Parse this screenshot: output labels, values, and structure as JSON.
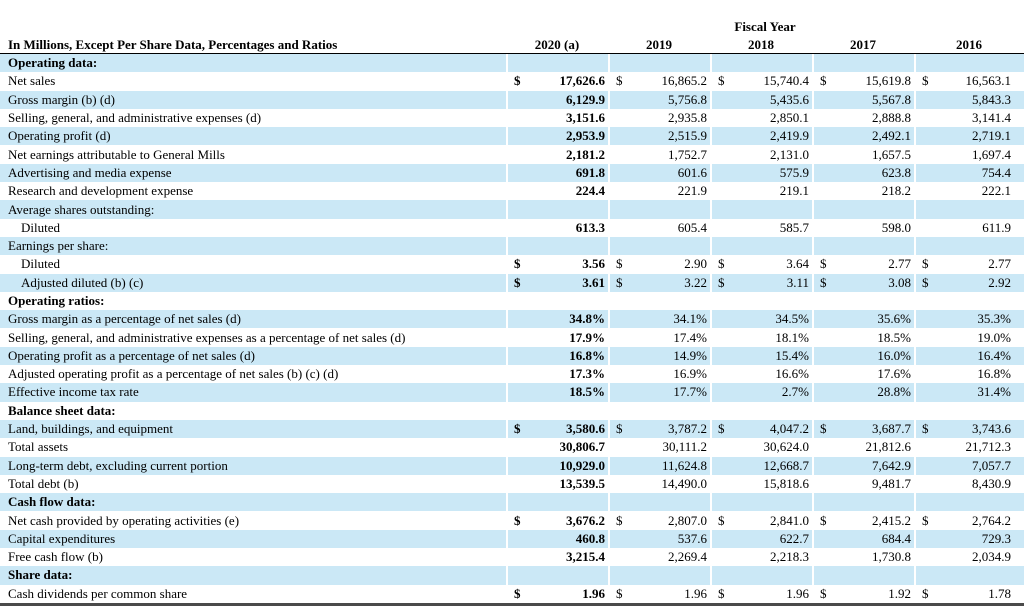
{
  "table": {
    "fiscal_year_label": "Fiscal Year",
    "row_label_header": "In Millions, Except Per Share Data, Percentages and Ratios",
    "year_columns": [
      "2020 (a)",
      "2019",
      "2018",
      "2017",
      "2016"
    ],
    "currency_symbol": "$",
    "colors": {
      "band": "#cbe8f6",
      "header_rule": "#000000",
      "bottom_rule": "#4a4a4a"
    },
    "rows": [
      {
        "label": "Operating data:",
        "style": "section-bold",
        "indent": false,
        "dollar": false,
        "values": []
      },
      {
        "label": "Net sales",
        "style": "data",
        "indent": false,
        "dollar": true,
        "values": [
          "17,626.6",
          "16,865.2",
          "15,740.4",
          "15,619.8",
          "16,563.1"
        ]
      },
      {
        "label": "Gross margin (b) (d)",
        "style": "data",
        "indent": false,
        "dollar": false,
        "values": [
          "6,129.9",
          "5,756.8",
          "5,435.6",
          "5,567.8",
          "5,843.3"
        ]
      },
      {
        "label": "Selling, general, and administrative expenses (d)",
        "style": "data",
        "indent": false,
        "dollar": false,
        "values": [
          "3,151.6",
          "2,935.8",
          "2,850.1",
          "2,888.8",
          "3,141.4"
        ]
      },
      {
        "label": "Operating profit (d)",
        "style": "data",
        "indent": false,
        "dollar": false,
        "values": [
          "2,953.9",
          "2,515.9",
          "2,419.9",
          "2,492.1",
          "2,719.1"
        ]
      },
      {
        "label": "Net earnings attributable to General Mills",
        "style": "data",
        "indent": false,
        "dollar": false,
        "values": [
          "2,181.2",
          "1,752.7",
          "2,131.0",
          "1,657.5",
          "1,697.4"
        ]
      },
      {
        "label": "Advertising and media expense",
        "style": "data",
        "indent": false,
        "dollar": false,
        "values": [
          "691.8",
          "601.6",
          "575.9",
          "623.8",
          "754.4"
        ]
      },
      {
        "label": "Research and development expense",
        "style": "data",
        "indent": false,
        "dollar": false,
        "values": [
          "224.4",
          "221.9",
          "219.1",
          "218.2",
          "222.1"
        ]
      },
      {
        "label": "Average shares outstanding:",
        "style": "section-plain",
        "indent": false,
        "dollar": false,
        "values": []
      },
      {
        "label": "Diluted",
        "style": "data",
        "indent": true,
        "dollar": false,
        "values": [
          "613.3",
          "605.4",
          "585.7",
          "598.0",
          "611.9"
        ]
      },
      {
        "label": "Earnings per share:",
        "style": "section-plain",
        "indent": false,
        "dollar": false,
        "values": []
      },
      {
        "label": "Diluted",
        "style": "data",
        "indent": true,
        "dollar": true,
        "values": [
          "3.56",
          "2.90",
          "3.64",
          "2.77",
          "2.77"
        ]
      },
      {
        "label": "Adjusted diluted (b) (c)",
        "style": "data",
        "indent": true,
        "dollar": true,
        "values": [
          "3.61",
          "3.22",
          "3.11",
          "3.08",
          "2.92"
        ]
      },
      {
        "label": "Operating ratios:",
        "style": "section-bold",
        "indent": false,
        "dollar": false,
        "values": []
      },
      {
        "label": "Gross margin as a percentage of net sales (d)",
        "style": "data",
        "indent": false,
        "dollar": false,
        "values": [
          "34.8%",
          "34.1%",
          "34.5%",
          "35.6%",
          "35.3%"
        ]
      },
      {
        "label": "Selling, general, and administrative expenses as a percentage of net sales (d)",
        "style": "data",
        "indent": false,
        "dollar": false,
        "values": [
          "17.9%",
          "17.4%",
          "18.1%",
          "18.5%",
          "19.0%"
        ]
      },
      {
        "label": "Operating profit as a percentage of net sales (d)",
        "style": "data",
        "indent": false,
        "dollar": false,
        "values": [
          "16.8%",
          "14.9%",
          "15.4%",
          "16.0%",
          "16.4%"
        ]
      },
      {
        "label": "Adjusted operating profit as a percentage of net sales (b) (c) (d)",
        "style": "data",
        "indent": false,
        "dollar": false,
        "values": [
          "17.3%",
          "16.9%",
          "16.6%",
          "17.6%",
          "16.8%"
        ]
      },
      {
        "label": "Effective income tax rate",
        "style": "data",
        "indent": false,
        "dollar": false,
        "values": [
          "18.5%",
          "17.7%",
          "2.7%",
          "28.8%",
          "31.4%"
        ]
      },
      {
        "label": "Balance sheet data:",
        "style": "section-bold",
        "indent": false,
        "dollar": false,
        "values": []
      },
      {
        "label": "Land, buildings, and equipment",
        "style": "data",
        "indent": false,
        "dollar": true,
        "values": [
          "3,580.6",
          "3,787.2",
          "4,047.2",
          "3,687.7",
          "3,743.6"
        ]
      },
      {
        "label": "Total assets",
        "style": "data",
        "indent": false,
        "dollar": false,
        "values": [
          "30,806.7",
          "30,111.2",
          "30,624.0",
          "21,812.6",
          "21,712.3"
        ]
      },
      {
        "label": "Long-term debt, excluding current portion",
        "style": "data",
        "indent": false,
        "dollar": false,
        "values": [
          "10,929.0",
          "11,624.8",
          "12,668.7",
          "7,642.9",
          "7,057.7"
        ]
      },
      {
        "label": "Total debt (b)",
        "style": "data",
        "indent": false,
        "dollar": false,
        "values": [
          "13,539.5",
          "14,490.0",
          "15,818.6",
          "9,481.7",
          "8,430.9"
        ]
      },
      {
        "label": "Cash flow data:",
        "style": "section-bold",
        "indent": false,
        "dollar": false,
        "values": []
      },
      {
        "label": "Net cash provided by operating activities (e)",
        "style": "data",
        "indent": false,
        "dollar": true,
        "values": [
          "3,676.2",
          "2,807.0",
          "2,841.0",
          "2,415.2",
          "2,764.2"
        ]
      },
      {
        "label": "Capital expenditures",
        "style": "data",
        "indent": false,
        "dollar": false,
        "values": [
          "460.8",
          "537.6",
          "622.7",
          "684.4",
          "729.3"
        ]
      },
      {
        "label": "Free cash flow (b)",
        "style": "data",
        "indent": false,
        "dollar": false,
        "values": [
          "3,215.4",
          "2,269.4",
          "2,218.3",
          "1,730.8",
          "2,034.9"
        ]
      },
      {
        "label": "Share data:",
        "style": "section-bold",
        "indent": false,
        "dollar": false,
        "values": []
      },
      {
        "label": "Cash dividends per common share",
        "style": "data",
        "indent": false,
        "dollar": true,
        "values": [
          "1.96",
          "1.96",
          "1.96",
          "1.92",
          "1.78"
        ]
      }
    ]
  }
}
